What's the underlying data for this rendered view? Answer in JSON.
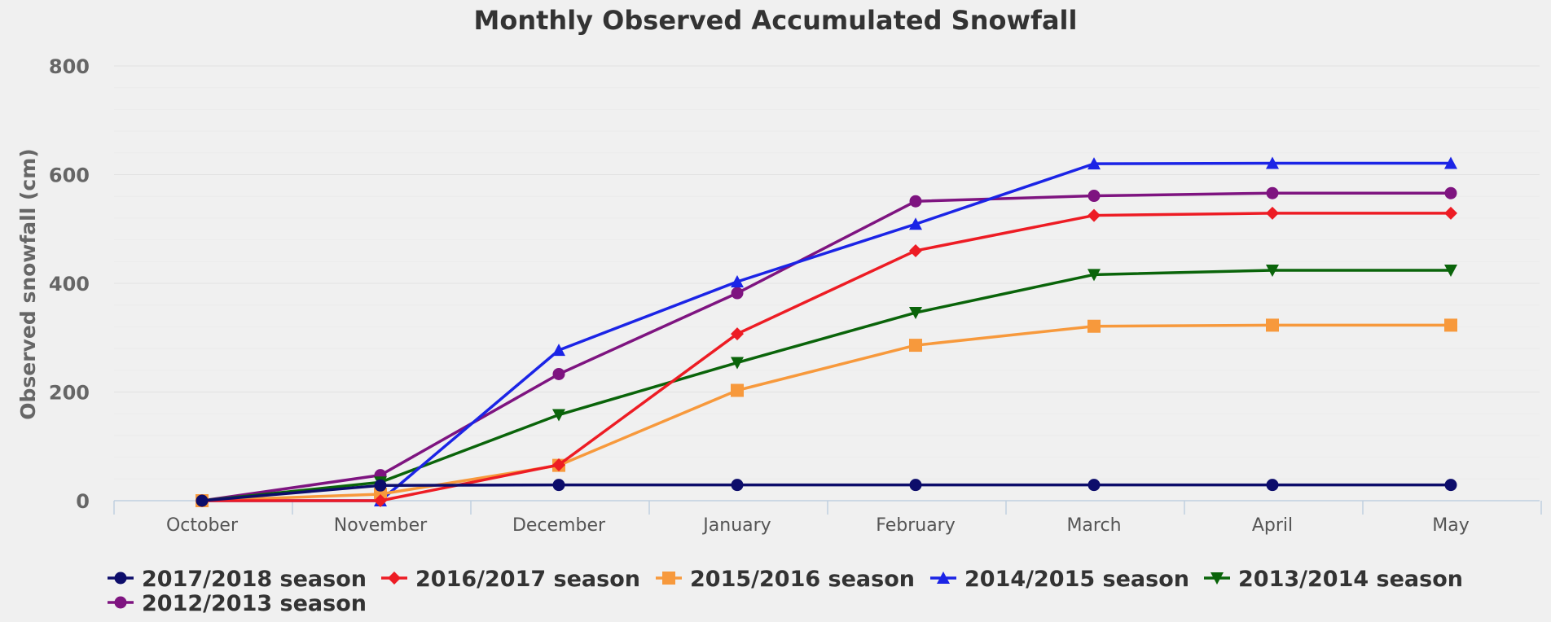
{
  "chart_data": {
    "type": "line",
    "title": "Monthly Observed Accumulated Snowfall",
    "ylabel": "Observed snowfall (cm)",
    "xlabel": "",
    "categories": [
      "October",
      "November",
      "December",
      "January",
      "February",
      "March",
      "April",
      "May"
    ],
    "ylim": [
      0,
      800
    ],
    "yticks": [
      0,
      200,
      400,
      600,
      800
    ],
    "grid": true,
    "legend_position": "bottom-left",
    "series": [
      {
        "name": "2017/2018 season",
        "color": "#0d0d6b",
        "marker": "circle",
        "values": [
          0,
          28,
          29,
          29,
          29,
          29,
          29,
          29
        ]
      },
      {
        "name": "2016/2017 season",
        "color": "#ed1c24",
        "marker": "diamond",
        "values": [
          0,
          0,
          66,
          307,
          460,
          525,
          529,
          529
        ]
      },
      {
        "name": "2015/2016 season",
        "color": "#f7993c",
        "marker": "square",
        "values": [
          0,
          12,
          65,
          203,
          286,
          321,
          323,
          323
        ]
      },
      {
        "name": "2014/2015 season",
        "color": "#1b24e6",
        "marker": "triangle-up",
        "values": [
          0,
          0,
          277,
          403,
          509,
          620,
          621,
          621
        ]
      },
      {
        "name": "2013/2014 season",
        "color": "#0a640a",
        "marker": "triangle-down",
        "values": [
          0,
          34,
          158,
          254,
          346,
          416,
          424,
          424
        ]
      },
      {
        "name": "2012/2013 season",
        "color": "#7e1480",
        "marker": "circle",
        "values": [
          0,
          47,
          233,
          382,
          551,
          561,
          566,
          566
        ]
      }
    ]
  }
}
